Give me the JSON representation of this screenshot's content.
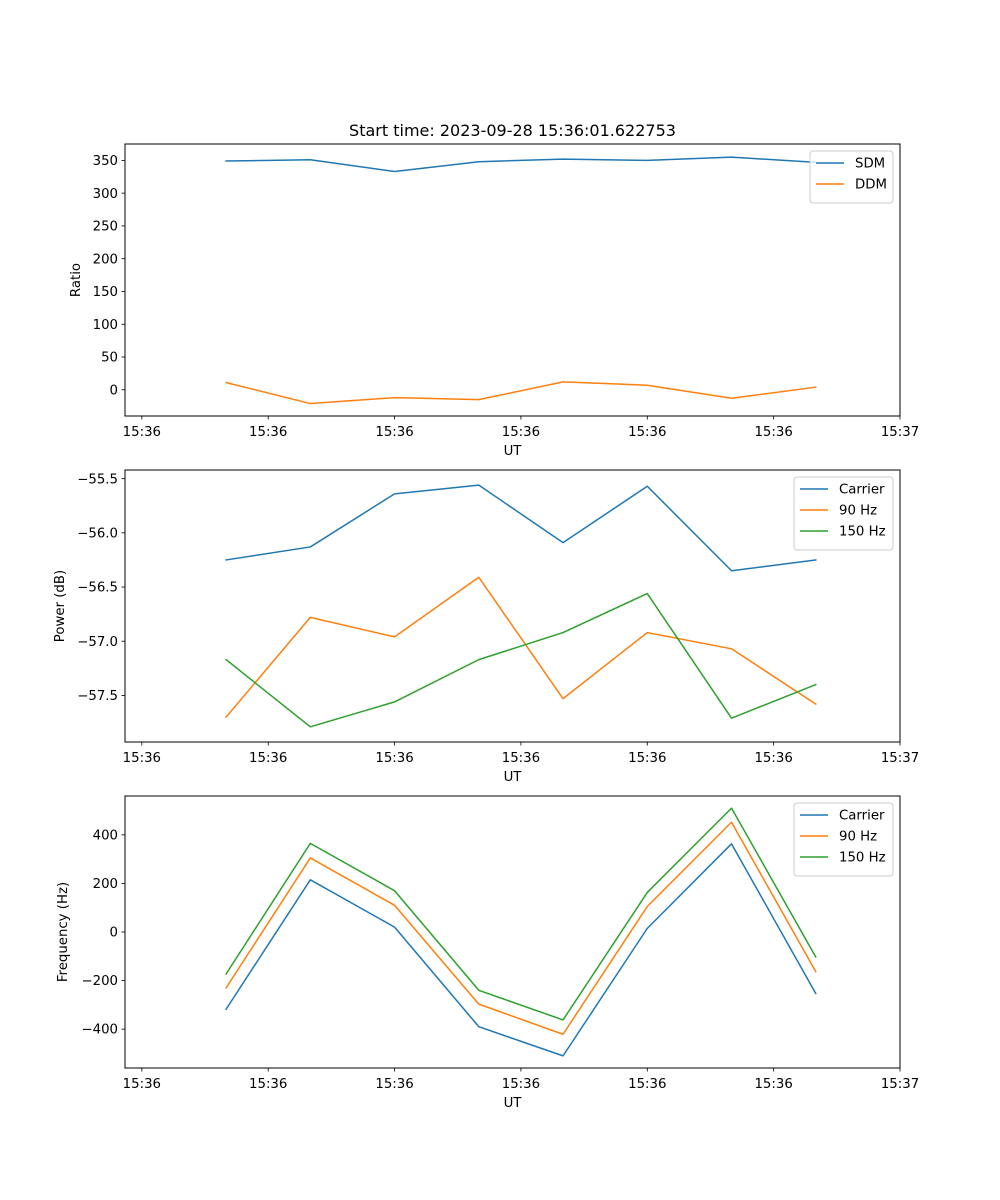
{
  "figure_title": "Start time: 2023-09-28 15:36:01.622753",
  "chart_data": [
    {
      "type": "line",
      "title": "Start time: 2023-09-28 15:36:01.622753",
      "xlabel": "UT",
      "ylabel": "Ratio",
      "xlim": [
        -0.2,
        9
      ],
      "x": [
        1,
        2,
        3,
        4,
        5,
        6,
        7,
        8
      ],
      "x_tick_values": [
        0,
        1.5,
        3,
        4.5,
        6,
        7.5,
        9
      ],
      "x_tick_labels": [
        "15:36",
        "15:36",
        "15:36",
        "15:36",
        "15:36",
        "15:36",
        "15:37"
      ],
      "ylim": [
        -40,
        375
      ],
      "y_ticks": [
        0,
        50,
        100,
        150,
        200,
        250,
        300,
        350
      ],
      "y_tick_labels": [
        "0",
        "50",
        "100",
        "150",
        "200",
        "250",
        "300",
        "350"
      ],
      "legend": "top-right",
      "series": [
        {
          "name": "SDM",
          "color": "#1f77b4",
          "values": [
            349,
            351,
            333,
            348,
            352,
            350,
            355,
            347
          ]
        },
        {
          "name": "DDM",
          "color": "#ff7f0e",
          "values": [
            11,
            -21,
            -12,
            -15,
            12,
            7,
            -13,
            4
          ]
        }
      ]
    },
    {
      "type": "line",
      "title": "",
      "xlabel": "UT",
      "ylabel": "Power (dB)",
      "xlim": [
        -0.2,
        9
      ],
      "x": [
        1,
        2,
        3,
        4,
        5,
        6,
        7,
        8
      ],
      "x_tick_values": [
        0,
        1.5,
        3,
        4.5,
        6,
        7.5,
        9
      ],
      "x_tick_labels": [
        "15:36",
        "15:36",
        "15:36",
        "15:36",
        "15:36",
        "15:36",
        "15:37"
      ],
      "ylim": [
        -57.93,
        -55.42
      ],
      "y_ticks": [
        -55.5,
        -56.0,
        -56.5,
        -57.0,
        -57.5
      ],
      "y_tick_labels": [
        "−55.5",
        "−56.0",
        "−56.5",
        "−57.0",
        "−57.5"
      ],
      "legend": "top-right",
      "series": [
        {
          "name": "Carrier",
          "color": "#1f77b4",
          "values": [
            -56.25,
            -56.13,
            -55.64,
            -55.56,
            -56.09,
            -55.57,
            -56.35,
            -56.25
          ]
        },
        {
          "name": "90 Hz",
          "color": "#ff7f0e",
          "values": [
            -57.7,
            -56.78,
            -56.96,
            -56.41,
            -57.53,
            -56.92,
            -57.07,
            -57.58
          ]
        },
        {
          "name": "150 Hz",
          "color": "#2ca02c",
          "values": [
            -57.17,
            -57.79,
            -57.56,
            -57.17,
            -56.92,
            -56.56,
            -57.71,
            -57.4
          ]
        }
      ]
    },
    {
      "type": "line",
      "title": "",
      "xlabel": "UT",
      "ylabel": "Frequency (Hz)",
      "xlim": [
        -0.2,
        9
      ],
      "x": [
        1,
        2,
        3,
        4,
        5,
        6,
        7,
        8
      ],
      "x_tick_values": [
        0,
        1.5,
        3,
        4.5,
        6,
        7.5,
        9
      ],
      "x_tick_labels": [
        "15:36",
        "15:36",
        "15:36",
        "15:36",
        "15:36",
        "15:36",
        "15:37"
      ],
      "ylim": [
        -560,
        560
      ],
      "y_ticks": [
        400,
        200,
        0,
        -200,
        -400
      ],
      "y_tick_labels": [
        "400",
        "200",
        "0",
        "−200",
        "−400"
      ],
      "legend": "top-right",
      "series": [
        {
          "name": "Carrier",
          "color": "#1f77b4",
          "values": [
            -318,
            215,
            20,
            -390,
            -510,
            15,
            363,
            -253
          ]
        },
        {
          "name": "90 Hz",
          "color": "#ff7f0e",
          "values": [
            -230,
            305,
            110,
            -297,
            -421,
            105,
            452,
            -163
          ]
        },
        {
          "name": "150 Hz",
          "color": "#2ca02c",
          "values": [
            -173,
            365,
            170,
            -240,
            -362,
            163,
            510,
            -103
          ]
        }
      ]
    }
  ]
}
